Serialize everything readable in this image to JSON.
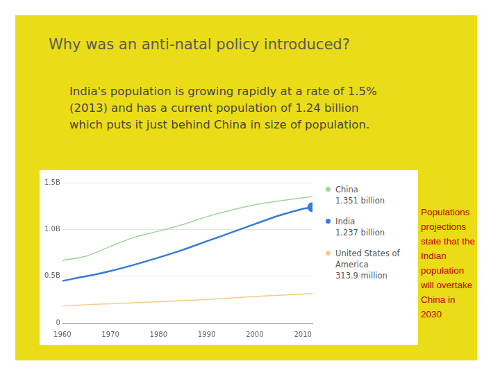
{
  "chart_data": {
    "type": "line",
    "title": "Why was an anti-natal policy introduced?",
    "subtitle": "India's population is growing rapidly at a rate of 1.5% (2013) and has a current population of 1.24 billion which puts it just behind China in size of population.",
    "annotations": [
      "Populations projections state that the Indian population will overtake China in 2030"
    ],
    "x": [
      1960,
      1965,
      1970,
      1975,
      1980,
      1985,
      1990,
      1995,
      2000,
      2005,
      2010,
      2012
    ],
    "xlim": [
      1960,
      2012
    ],
    "xticks": [
      1960,
      1970,
      1980,
      1990,
      2000,
      2010
    ],
    "ylim": [
      0,
      1.5
    ],
    "yticks": [
      0,
      {
        "value": 0.5,
        "label": "0.5B"
      },
      {
        "value": 1.0,
        "label": "1.0B"
      },
      {
        "value": 1.5,
        "label": "1.5B"
      }
    ],
    "grid": true,
    "legend": "right",
    "series": [
      {
        "name": "China",
        "legend_label": "1.351 billion",
        "color": "#9ed49a",
        "values": [
          0.667,
          0.715,
          0.818,
          0.916,
          0.981,
          1.051,
          1.135,
          1.205,
          1.263,
          1.304,
          1.338,
          1.351
        ]
      },
      {
        "name": "India",
        "legend_label": "1.237 billion",
        "color": "#3b78d8",
        "marker": "last",
        "values": [
          0.45,
          0.499,
          0.555,
          0.623,
          0.699,
          0.781,
          0.873,
          0.964,
          1.057,
          1.147,
          1.22,
          1.237
        ]
      },
      {
        "name": "United States of America",
        "legend_label": "313.9 million",
        "color": "#f6c98c",
        "values": [
          0.181,
          0.194,
          0.205,
          0.216,
          0.227,
          0.238,
          0.25,
          0.266,
          0.282,
          0.296,
          0.309,
          0.3139
        ]
      }
    ]
  }
}
